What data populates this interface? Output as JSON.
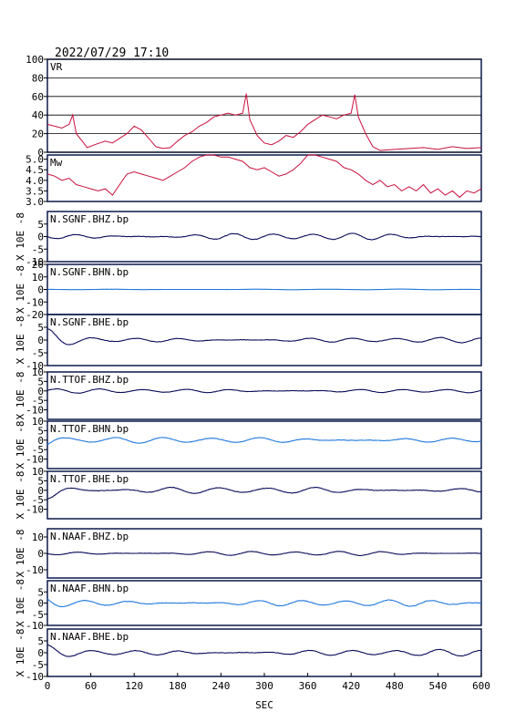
{
  "header": {
    "datetime": "2022/07/29  17:10"
  },
  "colors": {
    "frame": "#0a1a4a",
    "vr_mw": "#c8103c",
    "dark_wave": "#0a0a5a",
    "light_wave": "#1e78dc",
    "grid": "#000000"
  },
  "x_axis": {
    "label": "SEC",
    "ticks": [
      "0",
      "60",
      "120",
      "180",
      "240",
      "300",
      "360",
      "420",
      "480",
      "540",
      "600"
    ],
    "range": [
      0,
      600
    ]
  },
  "chart_data": [
    {
      "type": "line",
      "label": "VR",
      "ylim": [
        0,
        100
      ],
      "yticks": [
        "100",
        "80",
        "60",
        "40",
        "20",
        "0"
      ],
      "grid": true,
      "series": [
        {
          "x": [
            0,
            10,
            20,
            30,
            35,
            40,
            50,
            55,
            65,
            80,
            90,
            100,
            110,
            120,
            130,
            140,
            150,
            160,
            170,
            180,
            190,
            200,
            210,
            220,
            230,
            240,
            250,
            260,
            270,
            275,
            280,
            290,
            300,
            310,
            320,
            330,
            340,
            350,
            360,
            370,
            380,
            390,
            400,
            410,
            420,
            425,
            430,
            440,
            450,
            460,
            480,
            500,
            520,
            540,
            560,
            580,
            600
          ],
          "values": [
            30,
            28,
            26,
            30,
            40,
            20,
            10,
            5,
            8,
            12,
            10,
            15,
            20,
            28,
            24,
            15,
            6,
            4,
            5,
            12,
            18,
            22,
            28,
            32,
            38,
            40,
            42,
            40,
            42,
            63,
            35,
            18,
            10,
            8,
            12,
            18,
            16,
            22,
            30,
            35,
            40,
            38,
            36,
            40,
            42,
            62,
            38,
            20,
            6,
            2,
            3,
            4,
            5,
            3,
            6,
            4,
            5
          ]
        }
      ]
    },
    {
      "type": "line",
      "label": "Mw",
      "ylim": [
        3.0,
        5.2
      ],
      "yticks": [
        "5.0",
        "4.5",
        "4.0",
        "3.5",
        "3.0"
      ],
      "grid": false,
      "series": [
        {
          "x": [
            0,
            10,
            20,
            30,
            40,
            50,
            60,
            70,
            80,
            90,
            100,
            110,
            120,
            130,
            140,
            150,
            160,
            170,
            180,
            190,
            200,
            210,
            220,
            230,
            240,
            250,
            260,
            270,
            280,
            290,
            300,
            310,
            320,
            330,
            340,
            350,
            360,
            370,
            380,
            390,
            400,
            410,
            420,
            430,
            440,
            450,
            460,
            470,
            480,
            490,
            500,
            510,
            520,
            530,
            540,
            550,
            560,
            570,
            580,
            590,
            600
          ],
          "values": [
            4.3,
            4.2,
            4.0,
            4.1,
            3.8,
            3.7,
            3.6,
            3.5,
            3.6,
            3.3,
            3.8,
            4.3,
            4.4,
            4.3,
            4.2,
            4.1,
            4.0,
            4.2,
            4.4,
            4.6,
            4.9,
            5.1,
            5.2,
            5.2,
            5.1,
            5.1,
            5.0,
            4.9,
            4.6,
            4.5,
            4.6,
            4.4,
            4.2,
            4.3,
            4.5,
            4.8,
            5.2,
            5.2,
            5.1,
            5.0,
            4.9,
            4.6,
            4.5,
            4.3,
            4.0,
            3.8,
            4.0,
            3.7,
            3.8,
            3.5,
            3.7,
            3.5,
            3.8,
            3.4,
            3.6,
            3.3,
            3.5,
            3.2,
            3.5,
            3.4,
            3.6
          ]
        }
      ]
    },
    {
      "type": "line",
      "label": "N.SGNF.BHZ.bp",
      "ylabel": "X 10E -8",
      "ylim": [
        -10,
        10
      ],
      "yticks": [
        "5",
        "0",
        "-5",
        "-10"
      ],
      "color": "dark",
      "amp": 1.2,
      "freq": 0.11,
      "seed": 1
    },
    {
      "type": "line",
      "label": "N.SGNF.BHN.bp",
      "ylabel": "X 10E -8",
      "ylim": [
        -20,
        20
      ],
      "yticks": [
        "20",
        "10",
        "0",
        "-10",
        "-20"
      ],
      "color": "light",
      "amp": 0.25,
      "freq": 0.06,
      "seed": 2
    },
    {
      "type": "line",
      "label": "N.SGNF.BHE.bp",
      "ylabel": "X 10E -8",
      "ylim": [
        -10,
        10
      ],
      "yticks": [
        "5",
        "0",
        "-5",
        "-10"
      ],
      "color": "dark",
      "amp": 0.9,
      "freq": 0.1,
      "seed": 3,
      "burst": 3.5
    },
    {
      "type": "line",
      "label": "N.TTOF.BHZ.bp",
      "ylabel": "X 10E -8",
      "ylim": [
        -15,
        10
      ],
      "yticks": [
        "10",
        "5",
        "0",
        "-5",
        "-10"
      ],
      "color": "dark",
      "amp": 1.0,
      "freq": 0.1,
      "seed": 4
    },
    {
      "type": "line",
      "label": "N.TTOF.BHN.bp",
      "ylabel": "X 10E -8",
      "ylim": [
        -15,
        10
      ],
      "yticks": [
        "10",
        "5",
        "0",
        "-5",
        "-10"
      ],
      "color": "light",
      "amp": 1.4,
      "freq": 0.09,
      "seed": 5,
      "burst": 3
    },
    {
      "type": "line",
      "label": "N.TTOF.BHE.bp",
      "ylabel": "X 10E -8",
      "ylim": [
        -15,
        10
      ],
      "yticks": [
        "10",
        "5",
        "0",
        "-5",
        "-10"
      ],
      "color": "dark",
      "amp": 1.5,
      "freq": 0.09,
      "seed": 6,
      "burst": 4
    },
    {
      "type": "line",
      "label": "N.NAAF.BHZ.bp",
      "ylabel": "X 10E -8",
      "ylim": [
        -15,
        15
      ],
      "yticks": [
        "10",
        "0",
        "-10"
      ],
      "color": "dark",
      "amp": 1.2,
      "freq": 0.1,
      "seed": 7
    },
    {
      "type": "line",
      "label": "N.NAAF.BHN.bp",
      "ylabel": "X 10E -8",
      "ylim": [
        -10,
        10
      ],
      "yticks": [
        "5",
        "0",
        "-5",
        "-10"
      ],
      "color": "light",
      "amp": 1.3,
      "freq": 0.1,
      "seed": 8,
      "burst": 2
    },
    {
      "type": "line",
      "label": "N.NAAF.BHE.bp",
      "ylabel": "X 10E -8",
      "ylim": [
        -10,
        10
      ],
      "yticks": [
        "5",
        "0",
        "-5",
        "-10"
      ],
      "color": "dark",
      "amp": 1.2,
      "freq": 0.1,
      "seed": 9,
      "burst": 2
    }
  ]
}
